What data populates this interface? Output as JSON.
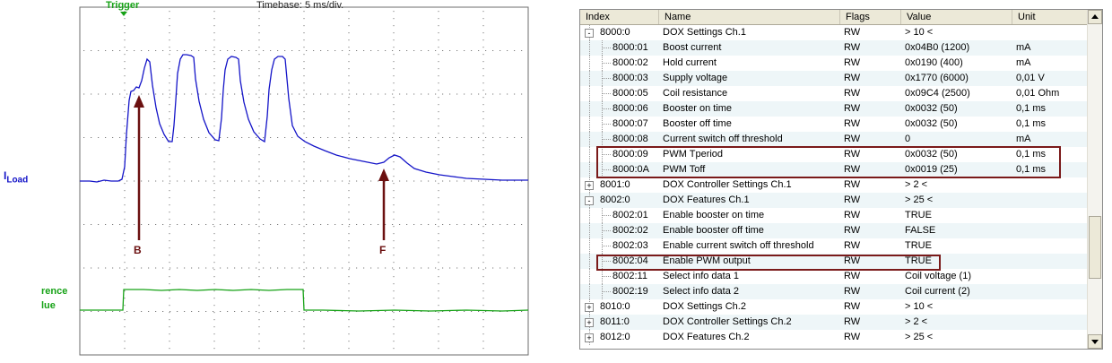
{
  "scope": {
    "trigger_label": "Trigger",
    "timebase_label": "Timebase: 5 ms/div.",
    "iload_label_main": "I",
    "iload_label_sub": "Load",
    "reference_label_line1": "rence",
    "reference_label_line2": "lue",
    "marker_b": "B",
    "marker_f": "F",
    "colors": {
      "grid": "#6e6e6e",
      "current": "#1414c8",
      "reference": "#16a216",
      "marker": "#6b1010"
    }
  },
  "table": {
    "columns": {
      "index": "Index",
      "name": "Name",
      "flags": "Flags",
      "value": "Value",
      "unit": "Unit"
    },
    "rows": [
      {
        "index": "8000:0",
        "name": "DOX Settings Ch.1",
        "flags": "RW",
        "value": "> 10 <",
        "unit": "",
        "level": 0,
        "toggle": "-"
      },
      {
        "index": "8000:01",
        "name": "Boost current",
        "flags": "RW",
        "value": "0x04B0 (1200)",
        "unit": "mA",
        "level": 1
      },
      {
        "index": "8000:02",
        "name": "Hold current",
        "flags": "RW",
        "value": "0x0190 (400)",
        "unit": "mA",
        "level": 1
      },
      {
        "index": "8000:03",
        "name": "Supply voltage",
        "flags": "RW",
        "value": "0x1770 (6000)",
        "unit": "0,01 V",
        "level": 1
      },
      {
        "index": "8000:05",
        "name": "Coil resistance",
        "flags": "RW",
        "value": "0x09C4 (2500)",
        "unit": "0,01 Ohm",
        "level": 1
      },
      {
        "index": "8000:06",
        "name": "Booster on time",
        "flags": "RW",
        "value": "0x0032 (50)",
        "unit": "0,1 ms",
        "level": 1
      },
      {
        "index": "8000:07",
        "name": "Booster off time",
        "flags": "RW",
        "value": "0x0032 (50)",
        "unit": "0,1 ms",
        "level": 1
      },
      {
        "index": "8000:08",
        "name": "Current switch off threshold",
        "flags": "RW",
        "value": "0",
        "unit": "mA",
        "level": 1
      },
      {
        "index": "8000:09",
        "name": "PWM Tperiod",
        "flags": "RW",
        "value": "0x0032 (50)",
        "unit": "0,1 ms",
        "level": 1
      },
      {
        "index": "8000:0A",
        "name": "PWM Toff",
        "flags": "RW",
        "value": "0x0019 (25)",
        "unit": "0,1 ms",
        "level": 1
      },
      {
        "index": "8001:0",
        "name": "DOX Controller Settings Ch.1",
        "flags": "RW",
        "value": "> 2 <",
        "unit": "",
        "level": 0,
        "toggle": "+"
      },
      {
        "index": "8002:0",
        "name": "DOX Features Ch.1",
        "flags": "RW",
        "value": "> 25 <",
        "unit": "",
        "level": 0,
        "toggle": "-"
      },
      {
        "index": "8002:01",
        "name": "Enable booster on time",
        "flags": "RW",
        "value": "TRUE",
        "unit": "",
        "level": 1
      },
      {
        "index": "8002:02",
        "name": "Enable booster off time",
        "flags": "RW",
        "value": "FALSE",
        "unit": "",
        "level": 1
      },
      {
        "index": "8002:03",
        "name": "Enable current switch off threshold",
        "flags": "RW",
        "value": "TRUE",
        "unit": "",
        "level": 1
      },
      {
        "index": "8002:04",
        "name": "Enable PWM output",
        "flags": "RW",
        "value": "TRUE",
        "unit": "",
        "level": 1
      },
      {
        "index": "8002:11",
        "name": "Select info data 1",
        "flags": "RW",
        "value": "Coil voltage (1)",
        "unit": "",
        "level": 1
      },
      {
        "index": "8002:19",
        "name": "Select info data 2",
        "flags": "RW",
        "value": "Coil current (2)",
        "unit": "",
        "level": 1
      },
      {
        "index": "8010:0",
        "name": "DOX Settings Ch.2",
        "flags": "RW",
        "value": "> 10 <",
        "unit": "",
        "level": 0,
        "toggle": "+"
      },
      {
        "index": "8011:0",
        "name": "DOX Controller Settings Ch.2",
        "flags": "RW",
        "value": "> 2 <",
        "unit": "",
        "level": 0,
        "toggle": "+"
      },
      {
        "index": "8012:0",
        "name": "DOX Features Ch.2",
        "flags": "RW",
        "value": "> 25 <",
        "unit": "",
        "level": 0,
        "toggle": "+"
      }
    ],
    "highlight_color": "#7a1a1a"
  }
}
